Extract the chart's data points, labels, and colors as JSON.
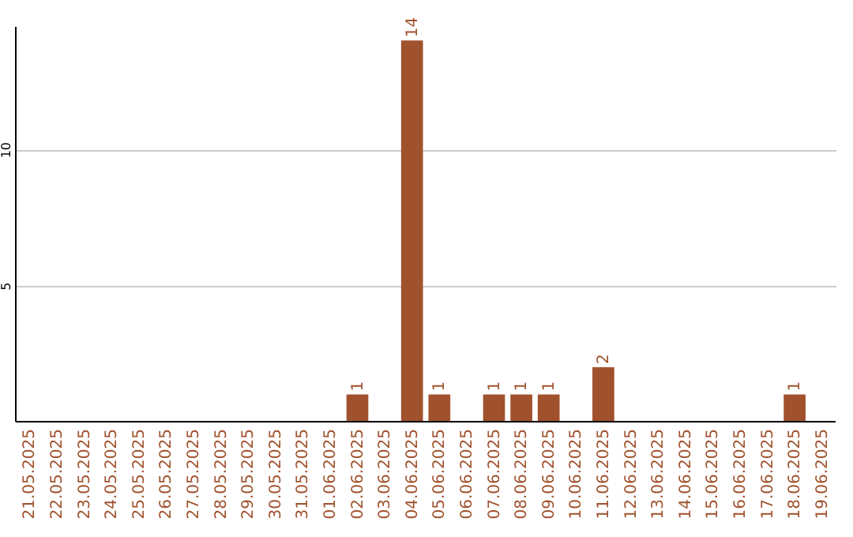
{
  "chart_data": {
    "type": "bar",
    "categories": [
      "21.05.2025",
      "22.05.2025",
      "23.05.2025",
      "24.05.2025",
      "25.05.2025",
      "26.05.2025",
      "27.05.2025",
      "28.05.2025",
      "29.05.2025",
      "30.05.2025",
      "31.05.2025",
      "01.06.2025",
      "02.06.2025",
      "03.06.2025",
      "04.06.2025",
      "05.06.2025",
      "06.06.2025",
      "07.06.2025",
      "08.06.2025",
      "09.06.2025",
      "10.06.2025",
      "11.06.2025",
      "12.06.2025",
      "13.06.2025",
      "14.06.2025",
      "15.06.2025",
      "16.06.2025",
      "17.06.2025",
      "18.06.2025",
      "19.06.2025"
    ],
    "values": [
      0,
      0,
      0,
      0,
      0,
      0,
      0,
      0,
      0,
      0,
      0,
      0,
      1,
      0,
      14,
      1,
      0,
      1,
      1,
      1,
      0,
      2,
      0,
      0,
      0,
      0,
      0,
      0,
      1,
      0
    ],
    "value_labels": [
      null,
      null,
      null,
      null,
      null,
      null,
      null,
      null,
      null,
      null,
      null,
      null,
      "1",
      null,
      "14",
      "1",
      null,
      "1",
      "1",
      "1",
      null,
      "2",
      null,
      null,
      null,
      null,
      null,
      null,
      "1",
      null
    ],
    "color": "#a0522d",
    "ylim": [
      0,
      14.5
    ],
    "yticks": [
      5,
      10
    ],
    "grid": "y"
  }
}
